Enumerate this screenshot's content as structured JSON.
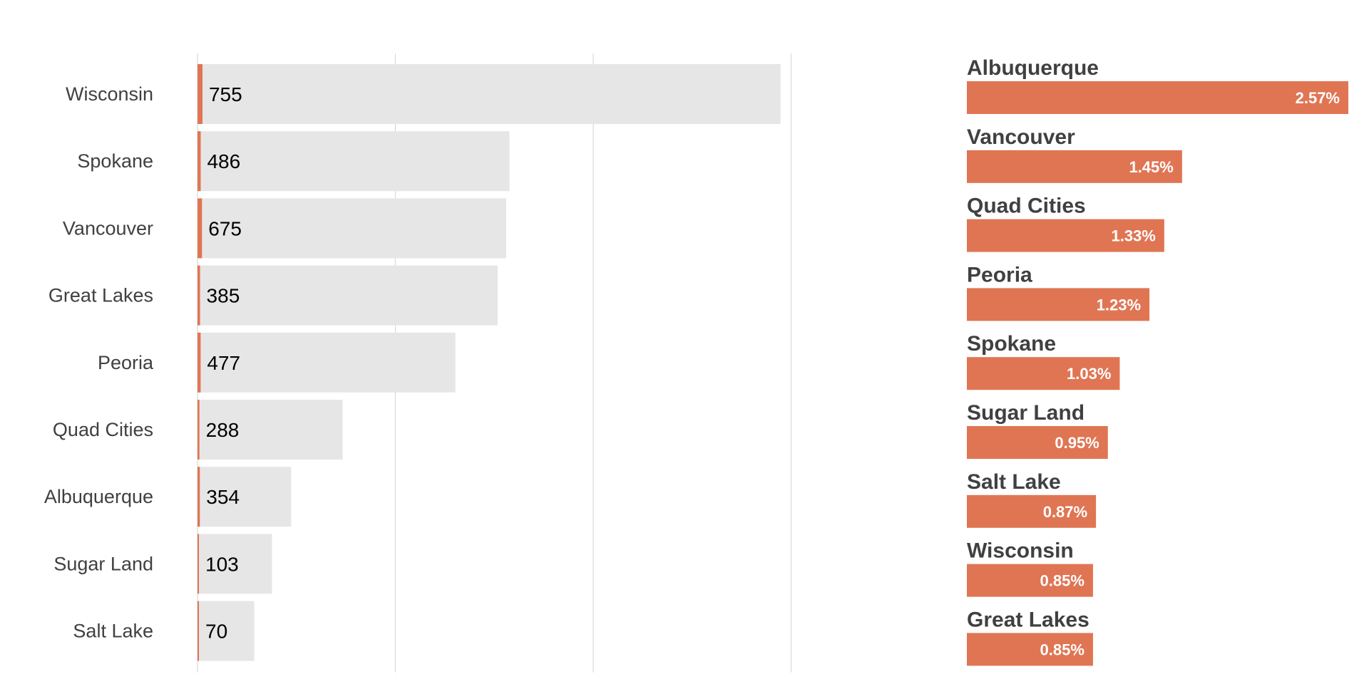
{
  "colors": {
    "accent": "#E07553",
    "background_bar": "#E6E6E6",
    "gridline": "#D9D9D9",
    "category_text": "#404040",
    "value_text": "#000000",
    "inner_label_text": "#FFFFFF",
    "right_title_text": "#404040"
  },
  "chart_data": [
    {
      "type": "bar",
      "orientation": "horizontal",
      "categories": [
        "Wisconsin",
        "Spokane",
        "Vancouver",
        "Great Lakes",
        "Peoria",
        "Quad Cities",
        "Albuquerque",
        "Sugar Land",
        "Salt Lake"
      ],
      "series": [
        {
          "values": [
            88400,
            47300,
            46800,
            45500,
            39100,
            22000,
            14200,
            11300,
            8600
          ]
        },
        {
          "values": [
            755,
            486,
            675,
            385,
            477,
            288,
            354,
            103,
            70
          ]
        }
      ],
      "data_labels": [
        "755",
        "486",
        "675",
        "385",
        "477",
        "288",
        "354",
        "103",
        "70"
      ],
      "xlim": [
        0,
        100000
      ],
      "grid": true,
      "xlabel": "",
      "ylabel": "",
      "title": ""
    },
    {
      "type": "bar",
      "orientation": "horizontal",
      "categories": [
        "Albuquerque",
        "Vancouver",
        "Quad Cities",
        "Peoria",
        "Spokane",
        "Sugar Land",
        "Salt Lake",
        "Wisconsin",
        "Great Lakes"
      ],
      "values": [
        2.57,
        1.45,
        1.33,
        1.23,
        1.03,
        0.95,
        0.87,
        0.85,
        0.85
      ],
      "data_labels": [
        "2.57%",
        "1.45%",
        "1.33%",
        "1.23%",
        "1.03%",
        "0.95%",
        "0.87%",
        "0.85%",
        "0.85%"
      ],
      "grid": false,
      "title": ""
    }
  ]
}
